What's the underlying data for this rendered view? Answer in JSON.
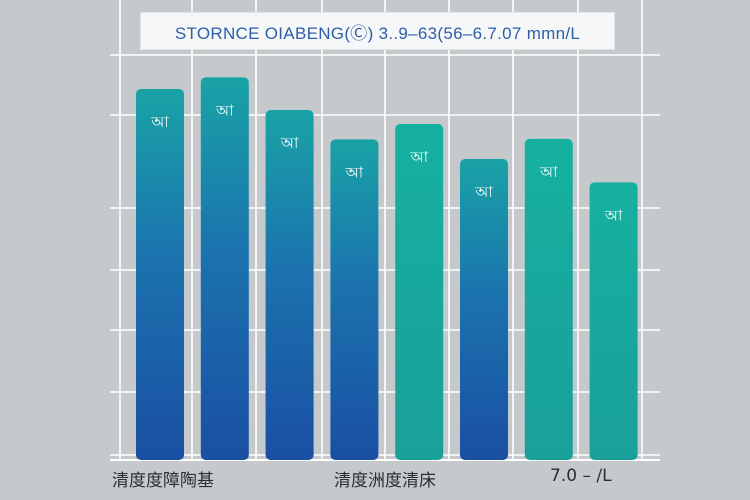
{
  "chart_data": {
    "type": "bar",
    "title": "STORNCE OIABENG(Ⓒ) 3..9–63(56–6.7.07 mmn/L",
    "categories": [
      "",
      "",
      "",
      "",
      "",
      "",
      "",
      ""
    ],
    "values": [
      7.95,
      8.2,
      7.5,
      6.87,
      7.2,
      6.45,
      6.88,
      5.95
    ],
    "data_labels": [
      "আ",
      "আ",
      "আ",
      "আ",
      "আ",
      "আ",
      "আ",
      "আ"
    ],
    "ylim": [
      0,
      9
    ],
    "grid": true,
    "legend": "none",
    "xlabel": "",
    "ylabel": "",
    "colors": {
      "background": "#c5c9cc",
      "grid": "#ffffff",
      "bar_blue_top": "#1f8fb0",
      "bar_blue_bottom": "#1a55a6",
      "bar_teal_top": "#14a99e",
      "bar_teal_bottom": "#1aa39c",
      "label": "#ffffff",
      "title": "#2d5fa8"
    },
    "bar_styles": [
      "blue",
      "blue",
      "blue",
      "blue",
      "teal",
      "blue",
      "teal",
      "teal"
    ]
  },
  "bottom_labels": [
    "清度度障陶基",
    "清度洲度清床",
    "7.0 – /L"
  ]
}
